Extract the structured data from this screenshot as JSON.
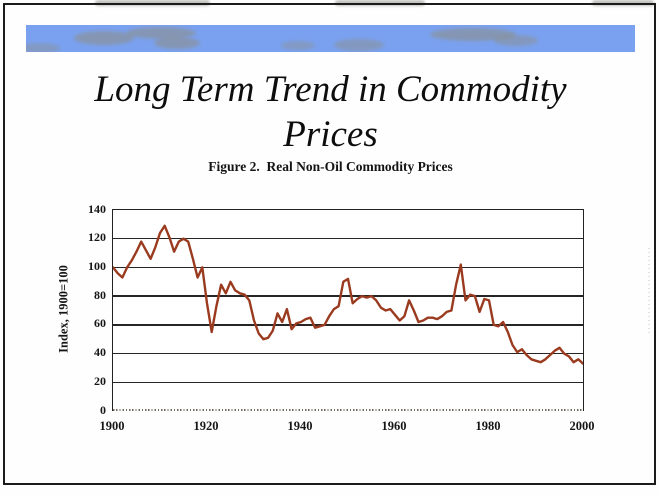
{
  "slide": {
    "title_line1": "Long Term Trend in Commodity",
    "title_line2": "Prices"
  },
  "figure": {
    "caption": "Figure 2.  Real Non-Oil Commodity Prices"
  },
  "chart_data": {
    "type": "line",
    "title": "Figure 2.  Real Non-Oil Commodity Prices",
    "xlabel": "",
    "ylabel": "Index, 1900=100",
    "xlim": [
      1900,
      2000
    ],
    "ylim": [
      0,
      140
    ],
    "xticks": [
      1900,
      1920,
      1940,
      1960,
      1980,
      2000
    ],
    "yticks": [
      0,
      20,
      40,
      60,
      80,
      100,
      120,
      140
    ],
    "grid": "horizontal",
    "legend": "none",
    "line_color": "#9a3b20",
    "series": [
      {
        "name": "Real non-oil commodity price index (1900=100)",
        "x_start": 1900,
        "x_step": 1,
        "values": [
          100,
          96,
          93,
          100,
          105,
          111,
          118,
          112,
          106,
          114,
          124,
          129,
          121,
          111,
          118,
          120,
          118,
          106,
          93,
          100,
          75,
          55,
          73,
          88,
          82,
          90,
          84,
          82,
          81,
          77,
          63,
          54,
          50,
          51,
          56,
          68,
          62,
          71,
          57,
          61,
          62,
          64,
          65,
          58,
          59,
          60,
          66,
          71,
          73,
          90,
          92,
          75,
          78,
          80,
          79,
          80,
          77,
          72,
          70,
          71,
          67,
          63,
          66,
          77,
          70,
          62,
          63,
          65,
          65,
          64,
          66,
          69,
          70,
          88,
          102,
          77,
          81,
          80,
          69,
          78,
          77,
          60,
          59,
          62,
          55,
          46,
          41,
          43,
          39,
          36,
          35,
          34,
          36,
          39,
          42,
          44,
          40,
          38,
          34,
          36,
          33
        ]
      }
    ]
  },
  "colors": {
    "banner": "#7aa1ef",
    "slide_border": "#1b1b1b",
    "grid_line": "#262626",
    "line": "#9a3b20",
    "text": "#111111"
  }
}
